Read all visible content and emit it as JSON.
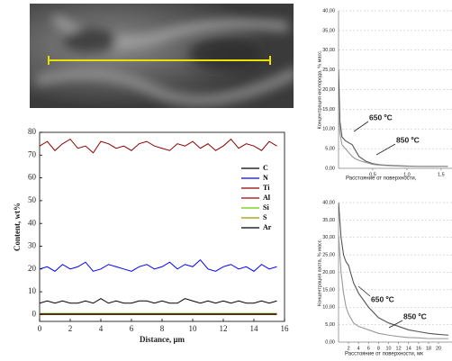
{
  "chart_data": [
    {
      "type": "line",
      "xlabel": "Distance, μm",
      "ylabel": "Content, wt%",
      "legend": "upper right",
      "grid": false,
      "xlim": [
        0,
        16
      ],
      "xticks": [
        0,
        2,
        4,
        6,
        8,
        10,
        12,
        14,
        16
      ],
      "ylim": [
        -3,
        80
      ],
      "yticks": [
        0,
        10,
        20,
        30,
        40,
        50,
        60,
        70,
        80
      ],
      "x": [
        0,
        0.5,
        1,
        1.5,
        2,
        2.5,
        3,
        3.5,
        4,
        4.5,
        5,
        5.5,
        6,
        6.5,
        7,
        7.5,
        8,
        8.5,
        9,
        9.5,
        10,
        10.5,
        11,
        11.5,
        12,
        12.5,
        13,
        13.5,
        14,
        14.5,
        15,
        15.5
      ],
      "series": [
        {
          "name": "C",
          "color": "#000000",
          "values": [
            5,
            6,
            5,
            6,
            5,
            5,
            6,
            5,
            7,
            5,
            6,
            5,
            5,
            6,
            6,
            5,
            6,
            5,
            5,
            7,
            6,
            5,
            6,
            5,
            6,
            5,
            6,
            5,
            5,
            6,
            5,
            6
          ]
        },
        {
          "name": "N",
          "color": "#0000ff",
          "values": [
            20,
            21,
            19,
            22,
            20,
            21,
            23,
            19,
            20,
            22,
            21,
            20,
            19,
            21,
            22,
            20,
            21,
            23,
            20,
            22,
            21,
            24,
            20,
            19,
            21,
            22,
            20,
            21,
            19,
            22,
            20,
            21
          ]
        },
        {
          "name": "Ti",
          "color": "#8b0000",
          "values": [
            74,
            76,
            72,
            75,
            77,
            73,
            74,
            71,
            76,
            75,
            73,
            74,
            72,
            75,
            76,
            74,
            73,
            72,
            75,
            74,
            76,
            73,
            75,
            72,
            74,
            77,
            73,
            75,
            74,
            72,
            76,
            74
          ]
        },
        {
          "name": "Al",
          "color": "#a00000",
          "values": [
            0,
            0,
            0,
            0,
            0,
            0,
            0,
            0,
            0,
            0,
            0,
            0,
            0,
            0,
            0,
            0,
            0,
            0,
            0,
            0,
            0,
            0,
            0,
            0,
            0,
            0,
            0,
            0,
            0,
            0,
            0,
            0
          ]
        },
        {
          "name": "Si",
          "color": "#66cc00",
          "values": [
            0.5,
            0.5,
            0.5,
            0.5,
            0.5,
            0.5,
            0.5,
            0.5,
            0.5,
            0.5,
            0.5,
            0.5,
            0.5,
            0.5,
            0.5,
            0.5,
            0.5,
            0.5,
            0.5,
            0.5,
            0.5,
            0.5,
            0.5,
            0.5,
            0.5,
            0.5,
            0.5,
            0.5,
            0.5,
            0.5,
            0.5,
            0.5
          ]
        },
        {
          "name": "S",
          "color": "#999900",
          "values": [
            0.3,
            0.3,
            0.3,
            0.3,
            0.3,
            0.3,
            0.3,
            0.3,
            0.3,
            0.3,
            0.3,
            0.3,
            0.3,
            0.3,
            0.3,
            0.3,
            0.3,
            0.3,
            0.3,
            0.3,
            0.3,
            0.3,
            0.3,
            0.3,
            0.3,
            0.3,
            0.3,
            0.3,
            0.3,
            0.3,
            0.3,
            0.3
          ]
        },
        {
          "name": "Ar",
          "color": "#000000",
          "values": [
            0.2,
            0.2,
            0.2,
            0.2,
            0.2,
            0.2,
            0.2,
            0.2,
            0.2,
            0.2,
            0.2,
            0.2,
            0.2,
            0.2,
            0.2,
            0.2,
            0.2,
            0.2,
            0.2,
            0.2,
            0.2,
            0.2,
            0.2,
            0.2,
            0.2,
            0.2,
            0.2,
            0.2,
            0.2,
            0.2,
            0.2,
            0.2
          ]
        }
      ]
    },
    {
      "type": "line",
      "xlabel": "Расстояние от поверхности,",
      "ylabel": "Концентрация кислорода, % масс.",
      "grid": true,
      "annotations": [
        "650 ºC",
        "850 ºC"
      ],
      "xlim": [
        0,
        1.66
      ],
      "xticks": [
        {
          "value": 0.5,
          "label": "0,5"
        },
        {
          "value": 1,
          "label": "1,0"
        },
        {
          "value": 1.5,
          "label": "1,5"
        }
      ],
      "ylim": [
        0,
        40
      ],
      "yticks": [
        {
          "value": 0,
          "label": "0,00"
        },
        {
          "value": 5,
          "label": "5,00"
        },
        {
          "value": 10,
          "label": "10,00"
        },
        {
          "value": 15,
          "label": "15,00"
        },
        {
          "value": 20,
          "label": "20,00"
        },
        {
          "value": 25,
          "label": "25,00"
        },
        {
          "value": 30,
          "label": "30,00"
        },
        {
          "value": 35,
          "label": "35,00"
        },
        {
          "value": 40,
          "label": "40,00"
        }
      ],
      "x": [
        0,
        0.02,
        0.05,
        0.1,
        0.15,
        0.2,
        0.25,
        0.3,
        0.4,
        0.5,
        0.6,
        0.8,
        1,
        1.2,
        1.4,
        1.6
      ],
      "series": [
        {
          "color": "#555555",
          "values": [
            25,
            12,
            8,
            7,
            6.5,
            6,
            4.5,
            3,
            1.8,
            1.2,
            0.9,
            0.7,
            0.6,
            0.5,
            0.5,
            0.5
          ]
        },
        {
          "color": "#999999",
          "values": [
            16,
            9,
            6,
            5,
            4,
            3,
            2.4,
            2,
            1.5,
            1,
            0.8,
            0.6,
            0.5,
            0.5,
            0.5,
            0.5
          ]
        }
      ]
    },
    {
      "type": "line",
      "xlabel": "Расстояние от поверхности, мк",
      "ylabel": "Концентрация азота, % масс.",
      "grid": true,
      "annotations": [
        "650 ºC",
        "850 ºC"
      ],
      "xlim": [
        0,
        22.7
      ],
      "xticks": [
        2,
        4,
        6,
        8,
        10,
        12,
        14,
        16,
        18,
        20
      ],
      "ylim": [
        0,
        40
      ],
      "yticks": [
        {
          "value": 0,
          "label": "0,00"
        },
        {
          "value": 5,
          "label": "5,00"
        },
        {
          "value": 10,
          "label": "10,00"
        },
        {
          "value": 15,
          "label": "15,00"
        },
        {
          "value": 20,
          "label": "20,00"
        },
        {
          "value": 25,
          "label": "25,00"
        },
        {
          "value": 30,
          "label": "30,00"
        },
        {
          "value": 35,
          "label": "35,00"
        },
        {
          "value": 40,
          "label": "40,00"
        }
      ],
      "x": [
        0,
        0.5,
        1,
        1.5,
        2,
        3,
        4,
        5,
        6,
        8,
        10,
        12,
        14,
        16,
        18,
        20,
        22
      ],
      "series": [
        {
          "color": "#555555",
          "values": [
            40,
            30,
            25,
            23,
            22,
            17,
            14,
            12,
            10,
            7,
            5.5,
            4.5,
            3.5,
            3,
            2.5,
            2.2,
            2
          ]
        },
        {
          "color": "#999999",
          "values": [
            31,
            20,
            14,
            10,
            8,
            5.5,
            4.5,
            4,
            3.5,
            2.5,
            2,
            1.6,
            1.3,
            1.2,
            1,
            1,
            1
          ]
        }
      ]
    }
  ]
}
